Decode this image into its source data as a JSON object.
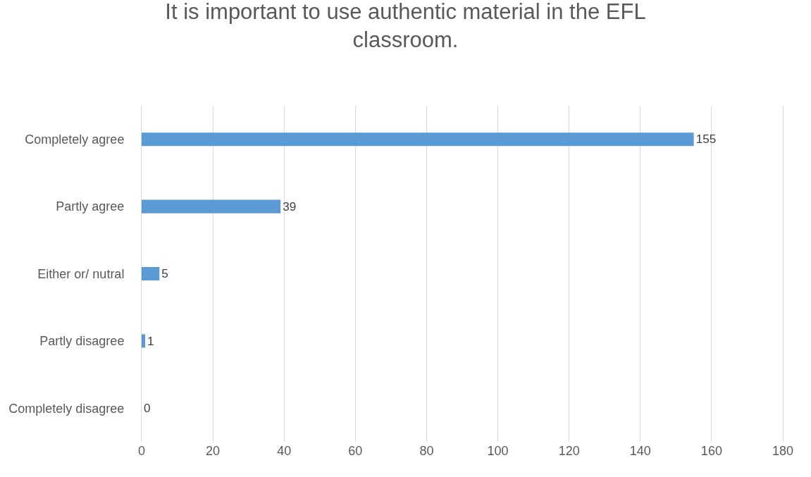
{
  "chart_data": {
    "type": "bar",
    "orientation": "horizontal",
    "title": "It is important to use authentic material in the EFL classroom.",
    "categories": [
      "Completely agree",
      "Partly agree",
      "Either or/ nutral",
      "Partly disagree",
      "Completely disagree"
    ],
    "values": [
      155,
      39,
      5,
      1,
      0
    ],
    "color": "#5b9bd5",
    "xlim": [
      0,
      180
    ],
    "xticks": [
      0,
      20,
      40,
      60,
      80,
      100,
      120,
      140,
      160,
      180
    ],
    "grid": "x",
    "data_labels": true
  }
}
